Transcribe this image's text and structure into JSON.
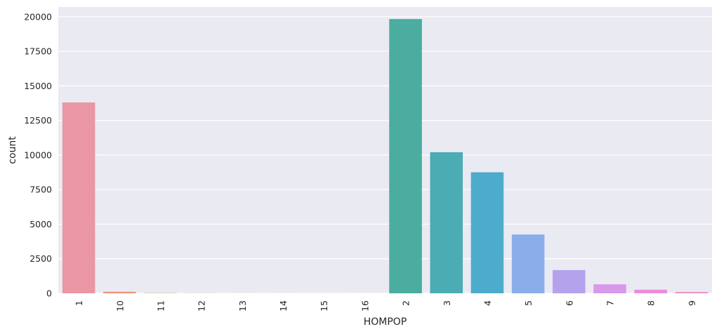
{
  "chart_data": {
    "type": "bar",
    "title": "",
    "xlabel": "HOMPOP",
    "ylabel": "count",
    "categories": [
      "1",
      "10",
      "11",
      "12",
      "13",
      "14",
      "15",
      "16",
      "2",
      "3",
      "4",
      "5",
      "6",
      "7",
      "8",
      "9"
    ],
    "values": [
      13800,
      110,
      20,
      8,
      4,
      3,
      2,
      1,
      19830,
      10200,
      8750,
      4250,
      1680,
      650,
      260,
      95
    ],
    "ylim": [
      0,
      20700
    ],
    "yticks": [
      0,
      2500,
      5000,
      7500,
      10000,
      12500,
      15000,
      17500,
      20000
    ],
    "grid": true,
    "legend": "none",
    "background": "#eaeaf2",
    "grid_color": "#ffffff",
    "colors": [
      "#ea96a3",
      "#ed917a",
      "#d99e58",
      "#c2a548",
      "#aeaa48",
      "#9bb048",
      "#7bb547",
      "#4ab25e",
      "#4aad9f",
      "#4bacb3",
      "#4dabcc",
      "#8aaeea",
      "#b5a2ed",
      "#d898eb",
      "#eb8ed7",
      "#e98fbe"
    ]
  }
}
